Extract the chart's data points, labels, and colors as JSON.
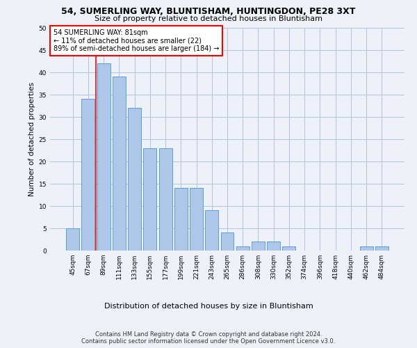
{
  "title": "54, SUMERLING WAY, BLUNTISHAM, HUNTINGDON, PE28 3XT",
  "subtitle": "Size of property relative to detached houses in Bluntisham",
  "xlabel": "Distribution of detached houses by size in Bluntisham",
  "ylabel": "Number of detached properties",
  "categories": [
    "45sqm",
    "67sqm",
    "89sqm",
    "111sqm",
    "133sqm",
    "155sqm",
    "177sqm",
    "199sqm",
    "221sqm",
    "243sqm",
    "265sqm",
    "286sqm",
    "308sqm",
    "330sqm",
    "352sqm",
    "374sqm",
    "396sqm",
    "418sqm",
    "440sqm",
    "462sqm",
    "484sqm"
  ],
  "values": [
    5,
    34,
    42,
    39,
    32,
    23,
    23,
    14,
    14,
    9,
    4,
    1,
    2,
    2,
    1,
    0,
    0,
    0,
    0,
    1,
    1
  ],
  "bar_color": "#aec6e8",
  "bar_edge_color": "#5a9fd4",
  "property_line_label": "54 SUMERLING WAY: 81sqm",
  "annotation_line1": "← 11% of detached houses are smaller (22)",
  "annotation_line2": "89% of semi-detached houses are larger (184) →",
  "annotation_box_color": "white",
  "annotation_box_edge_color": "red",
  "line_color": "red",
  "ylim": [
    0,
    50
  ],
  "yticks": [
    0,
    5,
    10,
    15,
    20,
    25,
    30,
    35,
    40,
    45,
    50
  ],
  "grid_color": "#b0c4de",
  "footer_line1": "Contains HM Land Registry data © Crown copyright and database right 2024.",
  "footer_line2": "Contains public sector information licensed under the Open Government Licence v3.0.",
  "bg_color": "#eef2f8",
  "title_fontsize": 9,
  "subtitle_fontsize": 8,
  "ylabel_fontsize": 7.5,
  "xlabel_fontsize": 8,
  "tick_fontsize": 6.5,
  "annot_fontsize": 7,
  "footer_fontsize": 6
}
